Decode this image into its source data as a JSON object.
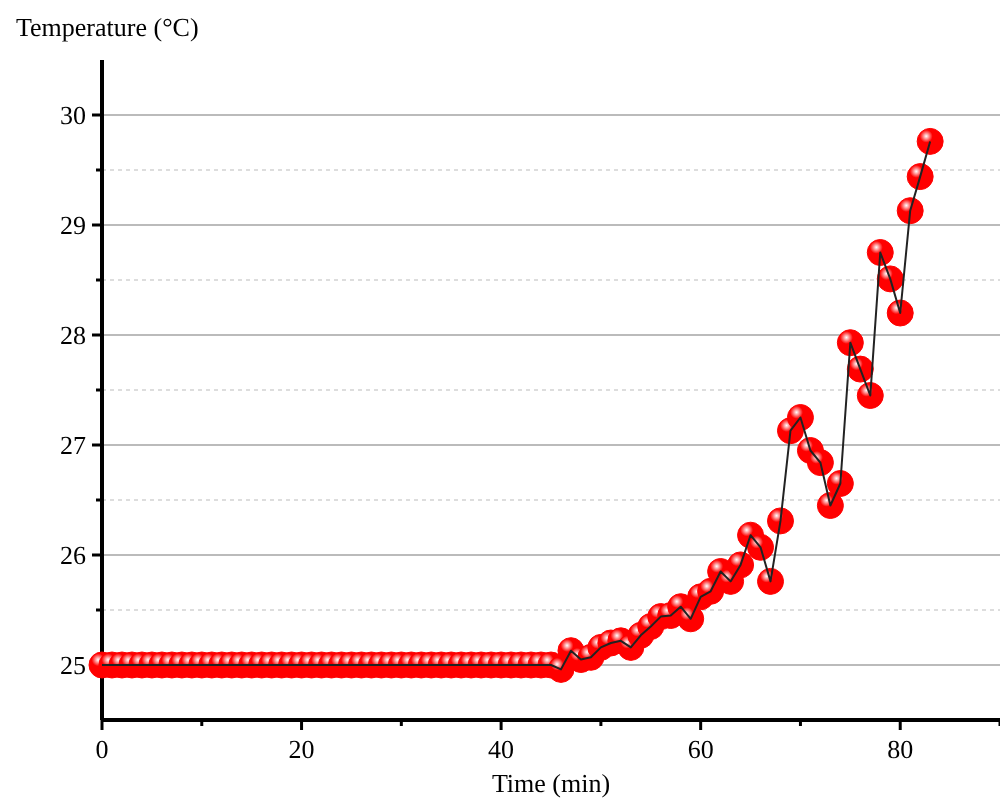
{
  "chart_data": {
    "type": "line",
    "xlabel": "Time (min)",
    "ylabel": "Temperature (°C)",
    "x": [
      0,
      1,
      2,
      3,
      4,
      5,
      6,
      7,
      8,
      9,
      10,
      11,
      12,
      13,
      14,
      15,
      16,
      17,
      18,
      19,
      20,
      21,
      22,
      23,
      24,
      25,
      26,
      27,
      28,
      29,
      30,
      31,
      32,
      33,
      34,
      35,
      36,
      37,
      38,
      39,
      40,
      41,
      42,
      43,
      44,
      45,
      46,
      47,
      48,
      49,
      50,
      51,
      52,
      53,
      54,
      55,
      56,
      57,
      58,
      59,
      60,
      61,
      62,
      63,
      64,
      65,
      66,
      67,
      68,
      69,
      70,
      71,
      72,
      73,
      74,
      75,
      76,
      77,
      78,
      79,
      80,
      81,
      82,
      83
    ],
    "series": [
      {
        "color": "#ff0000",
        "values": [
          25,
          25,
          25,
          25,
          25,
          25,
          25,
          25,
          25,
          25,
          25,
          25,
          25,
          25,
          25,
          25,
          25,
          25,
          25,
          25,
          25,
          25,
          25,
          25,
          25,
          25,
          25,
          25,
          25,
          25,
          25,
          25,
          25,
          25,
          25,
          25,
          25,
          25,
          25,
          25,
          25,
          25,
          25,
          25,
          25,
          25,
          24.96,
          25.13,
          25.05,
          25.07,
          25.16,
          25.2,
          25.22,
          25.16,
          25.27,
          25.35,
          25.44,
          25.45,
          25.53,
          25.42,
          25.62,
          25.67,
          25.85,
          25.76,
          25.91,
          26.18,
          26.07,
          25.76,
          26.31,
          27.13,
          27.25,
          26.95,
          26.84,
          26.45,
          26.65,
          27.93,
          27.69,
          27.45,
          28.75,
          28.51,
          28.2,
          29.13,
          29.44,
          29.76
        ]
      }
    ],
    "xlim": [
      0,
      90
    ],
    "xticks": [
      0,
      {
        "value": 10,
        "label": null
      },
      20,
      {
        "value": 30,
        "label": null
      },
      40,
      {
        "value": 50,
        "label": null
      },
      60,
      {
        "value": 70,
        "label": null
      },
      80,
      {
        "value": 90,
        "label": null
      }
    ],
    "ylim": [
      24.5,
      30.5
    ],
    "yticks": [
      25,
      {
        "value": 25.5,
        "label": null
      },
      26,
      {
        "value": 26.5,
        "label": null
      },
      27,
      {
        "value": 27.5,
        "label": null
      },
      28,
      {
        "value": 28.5,
        "label": null
      },
      29,
      {
        "value": 29.5,
        "label": null
      },
      30
    ],
    "grid": "y",
    "marker": "circle",
    "line_style": "solid"
  }
}
